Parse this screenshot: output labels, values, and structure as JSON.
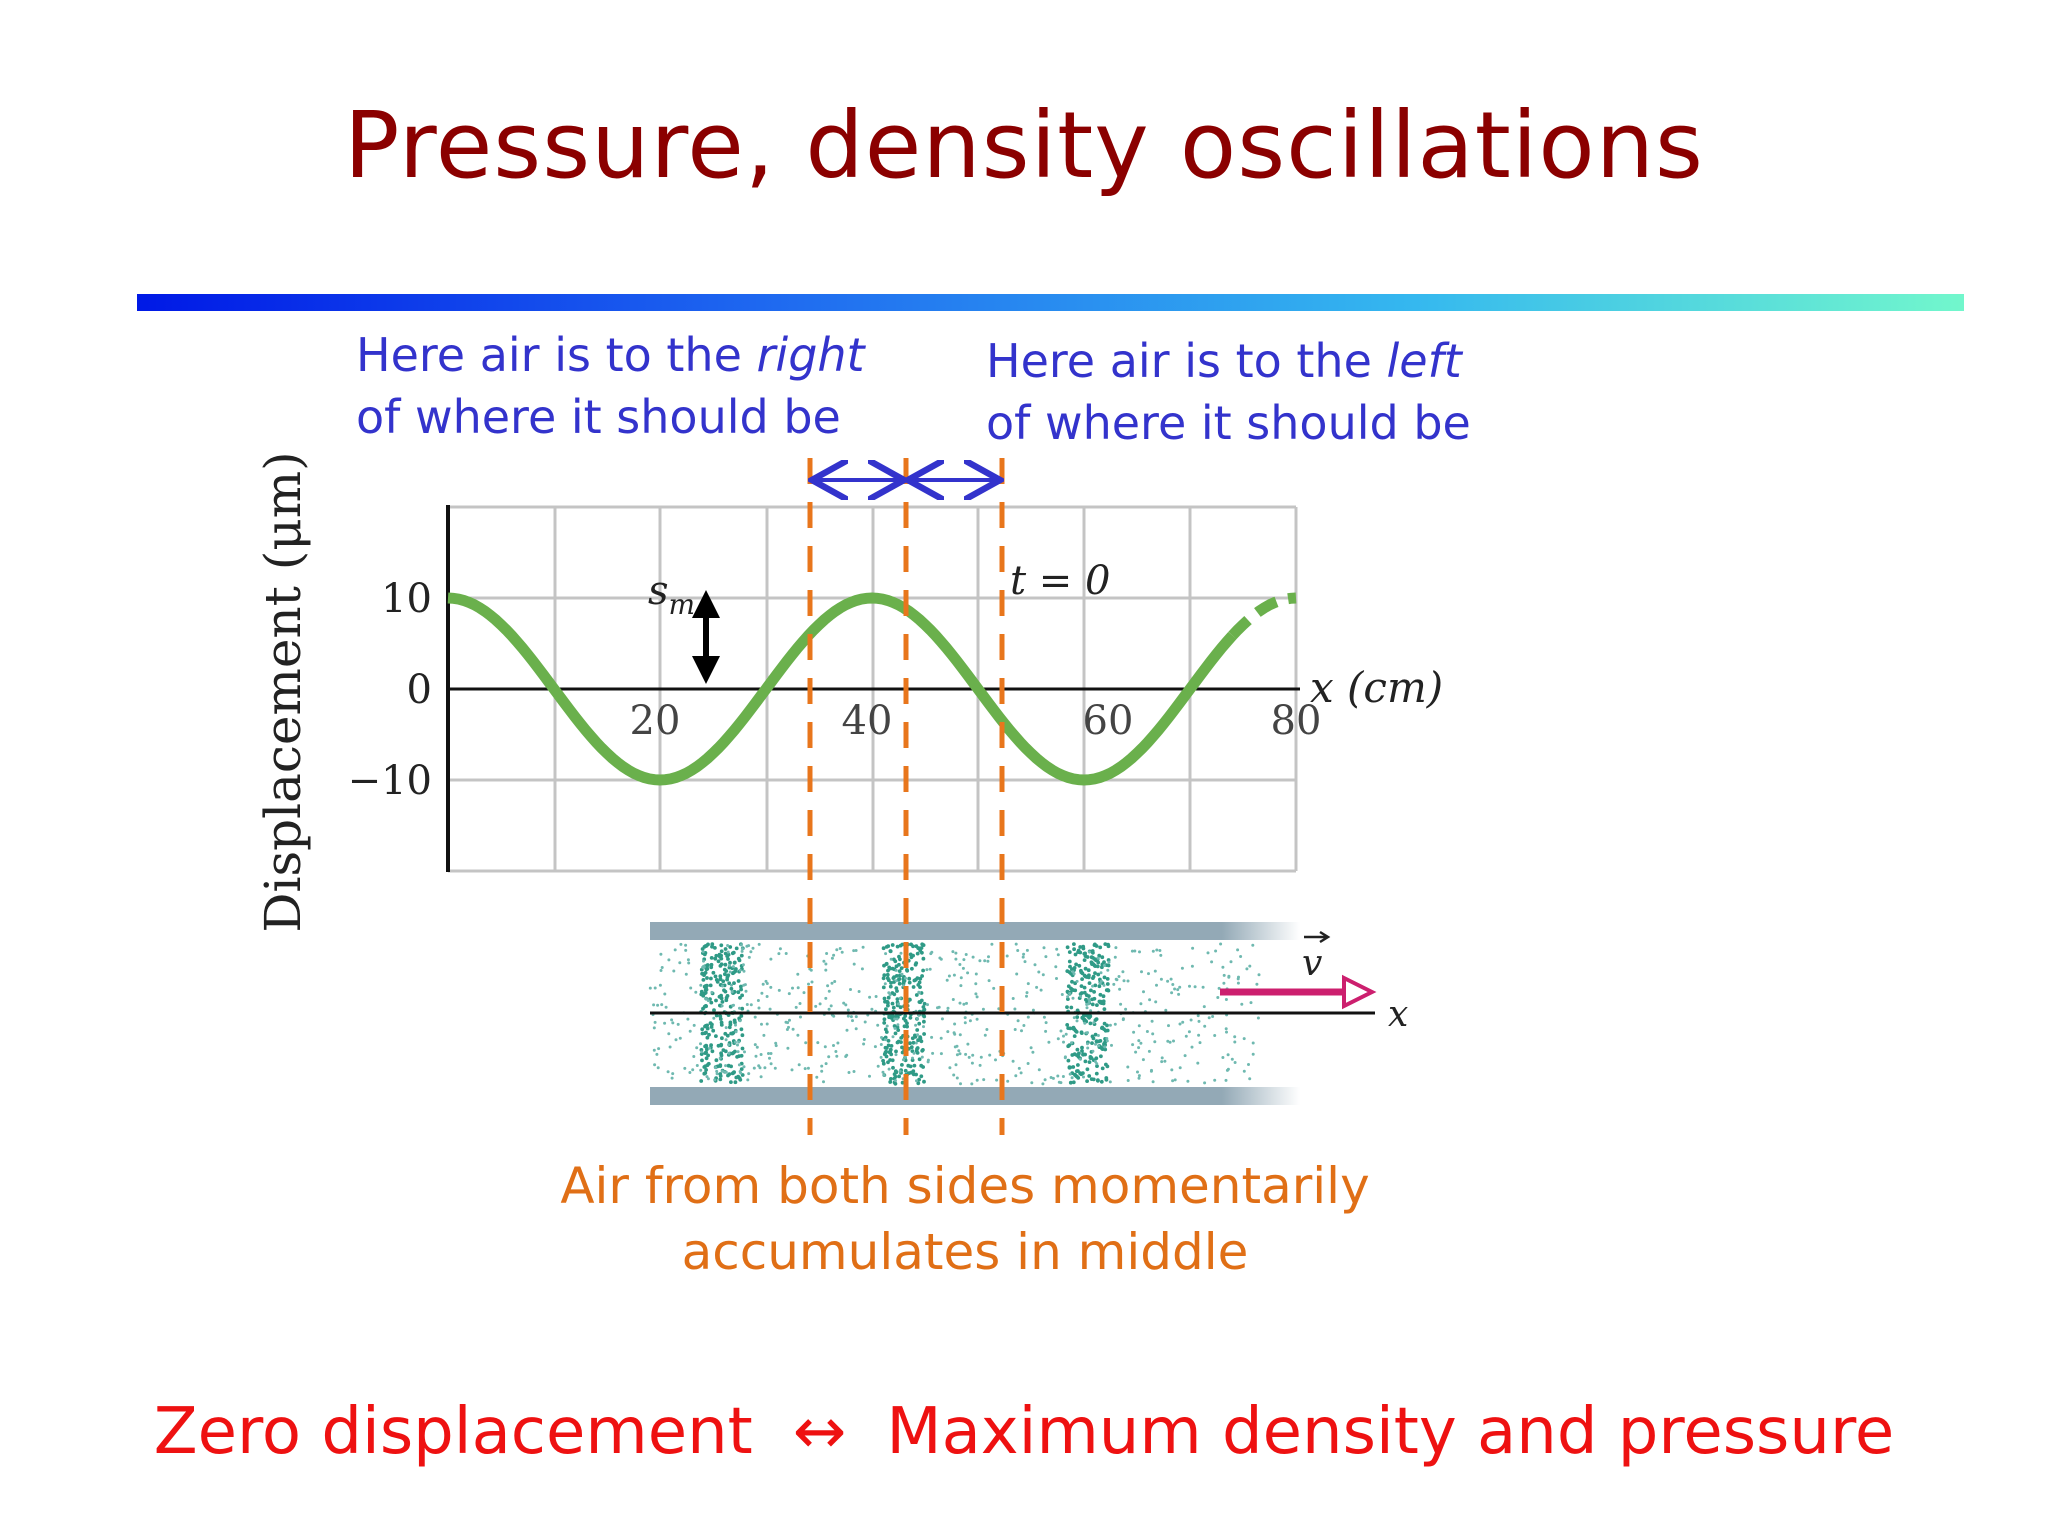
{
  "title": "Pressure, density oscillations",
  "notes": {
    "left": {
      "line1_prefix": "Here air is to the ",
      "line1_em": "right",
      "line2": "of where it should be"
    },
    "right": {
      "line1_prefix": "Here air is to the ",
      "line1_em": "left",
      "line2": "of where it should be"
    }
  },
  "caption": {
    "line1": "Air from both sides momentarily",
    "line2": "accumulates in middle"
  },
  "bottom": {
    "left": "Zero displacement",
    "arrow": "↔",
    "right": "Maximum density and pressure"
  },
  "plot": {
    "ylabel": "Displacement (μm)",
    "xlabel": "x (cm)",
    "y_ticks": [
      "10",
      "0",
      "−10"
    ],
    "x_ticks": [
      "20",
      "40",
      "60",
      "80"
    ],
    "amplitude_label": "s",
    "amplitude_sub": "m",
    "time_label": "t = 0",
    "tube_x_label": "x",
    "velocity_label": "v",
    "curve_color": "#6ab04c",
    "marker_color": "#e8761c",
    "arrow_color": "#3333cc"
  },
  "chart_data": {
    "type": "line",
    "xlabel": "x (cm)",
    "ylabel": "Displacement (μm)",
    "xlim": [
      0,
      80
    ],
    "ylim": [
      -10,
      10
    ],
    "series": [
      {
        "x": [
          0,
          10,
          20,
          30,
          40,
          50,
          60,
          70,
          80
        ],
        "values": [
          10,
          0,
          -10,
          0,
          10,
          0,
          -10,
          0,
          10
        ]
      }
    ],
    "marker_x": [
      34,
      43,
      52
    ]
  }
}
